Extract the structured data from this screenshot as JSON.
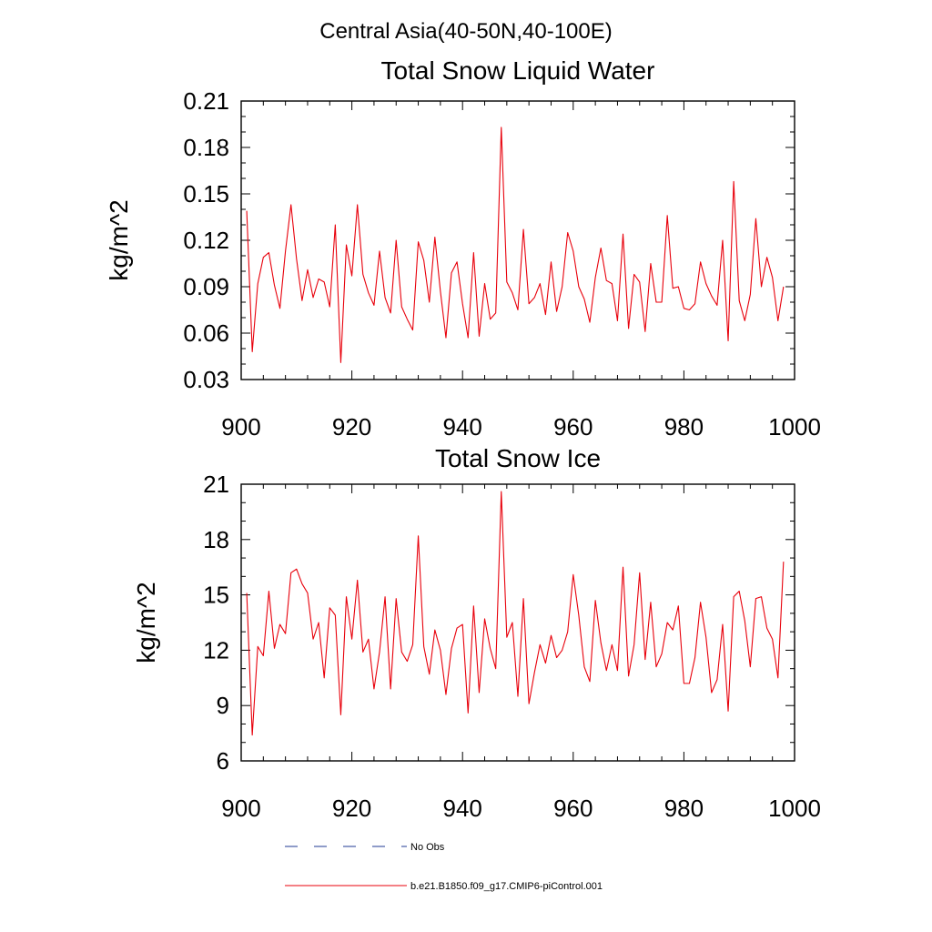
{
  "figure": {
    "main_title": "Central Asia(40-50N,40-100E)"
  },
  "chart_data": [
    {
      "type": "line",
      "title": "Total Snow Liquid Water",
      "xlabel": "",
      "ylabel": "kg/m^2",
      "xlim": [
        900,
        1000
      ],
      "ylim": [
        0.03,
        0.21
      ],
      "xticks": [
        900,
        920,
        940,
        960,
        980,
        1000
      ],
      "xtick_labels": [
        "900",
        "920",
        "940",
        "960",
        "980",
        "1000"
      ],
      "yticks": [
        0.03,
        0.06,
        0.09,
        0.12,
        0.15,
        0.18,
        0.21
      ],
      "ytick_labels": [
        "0.03",
        "0.06",
        "0.09",
        "0.12",
        "0.15",
        "0.18",
        "0.21"
      ],
      "grid": false,
      "series": [
        {
          "name": "b.e21.B1850.f09_g17.CMIP6-piControl.001",
          "color": "#e8000b",
          "x": [
            901,
            902,
            903,
            904,
            905,
            906,
            907,
            908,
            909,
            910,
            911,
            912,
            913,
            914,
            915,
            916,
            917,
            918,
            919,
            920,
            921,
            922,
            923,
            924,
            925,
            926,
            927,
            928,
            929,
            930,
            931,
            932,
            933,
            934,
            935,
            936,
            937,
            938,
            939,
            940,
            941,
            942,
            943,
            944,
            945,
            946,
            947,
            948,
            949,
            950,
            951,
            952,
            953,
            954,
            955,
            956,
            957,
            958,
            959,
            960,
            961,
            962,
            963,
            964,
            965,
            966,
            967,
            968,
            969,
            970,
            971,
            972,
            973,
            974,
            975,
            976,
            977,
            978,
            979,
            980,
            981,
            982,
            983,
            984,
            985,
            986,
            987,
            988,
            989,
            990,
            991,
            992,
            993,
            994,
            995,
            996,
            997,
            998
          ],
          "y": [
            0.139,
            0.048,
            0.092,
            0.109,
            0.112,
            0.091,
            0.076,
            0.113,
            0.143,
            0.108,
            0.081,
            0.101,
            0.083,
            0.095,
            0.093,
            0.077,
            0.13,
            0.041,
            0.117,
            0.097,
            0.143,
            0.098,
            0.086,
            0.078,
            0.113,
            0.083,
            0.073,
            0.12,
            0.077,
            0.069,
            0.062,
            0.119,
            0.107,
            0.08,
            0.122,
            0.087,
            0.057,
            0.099,
            0.106,
            0.079,
            0.057,
            0.112,
            0.058,
            0.092,
            0.069,
            0.073,
            0.193,
            0.093,
            0.086,
            0.075,
            0.127,
            0.079,
            0.083,
            0.092,
            0.072,
            0.106,
            0.074,
            0.09,
            0.125,
            0.113,
            0.09,
            0.082,
            0.067,
            0.096,
            0.115,
            0.094,
            0.092,
            0.068,
            0.124,
            0.063,
            0.098,
            0.093,
            0.061,
            0.105,
            0.08,
            0.08,
            0.136,
            0.089,
            0.09,
            0.076,
            0.075,
            0.079,
            0.106,
            0.092,
            0.084,
            0.078,
            0.12,
            0.055,
            0.158,
            0.081,
            0.068,
            0.085,
            0.134,
            0.09,
            0.109,
            0.096,
            0.068,
            0.09
          ]
        }
      ]
    },
    {
      "type": "line",
      "title": "Total Snow Ice",
      "xlabel": "",
      "ylabel": "kg/m^2",
      "xlim": [
        900,
        1000
      ],
      "ylim": [
        6,
        21
      ],
      "xticks": [
        900,
        920,
        940,
        960,
        980,
        1000
      ],
      "xtick_labels": [
        "900",
        "920",
        "940",
        "960",
        "980",
        "1000"
      ],
      "yticks": [
        6,
        9,
        12,
        15,
        18,
        21
      ],
      "ytick_labels": [
        "6",
        "9",
        "12",
        "15",
        "18",
        "21"
      ],
      "grid": false,
      "series": [
        {
          "name": "b.e21.B1850.f09_g17.CMIP6-piControl.001",
          "color": "#e8000b",
          "x": [
            901,
            902,
            903,
            904,
            905,
            906,
            907,
            908,
            909,
            910,
            911,
            912,
            913,
            914,
            915,
            916,
            917,
            918,
            919,
            920,
            921,
            922,
            923,
            924,
            925,
            926,
            927,
            928,
            929,
            930,
            931,
            932,
            933,
            934,
            935,
            936,
            937,
            938,
            939,
            940,
            941,
            942,
            943,
            944,
            945,
            946,
            947,
            948,
            949,
            950,
            951,
            952,
            953,
            954,
            955,
            956,
            957,
            958,
            959,
            960,
            961,
            962,
            963,
            964,
            965,
            966,
            967,
            968,
            969,
            970,
            971,
            972,
            973,
            974,
            975,
            976,
            977,
            978,
            979,
            980,
            981,
            982,
            983,
            984,
            985,
            986,
            987,
            988,
            989,
            990,
            991,
            992,
            993,
            994,
            995,
            996,
            997,
            998
          ],
          "y": [
            15.1,
            7.4,
            12.2,
            11.7,
            15.2,
            12.1,
            13.4,
            12.9,
            16.2,
            16.4,
            15.6,
            15.1,
            12.6,
            13.5,
            10.5,
            14.3,
            13.9,
            8.5,
            14.9,
            12.6,
            15.8,
            11.9,
            12.6,
            9.9,
            11.9,
            14.9,
            9.9,
            14.8,
            11.9,
            11.4,
            12.3,
            18.2,
            12.2,
            10.7,
            13.1,
            12.0,
            9.6,
            12.1,
            13.2,
            13.4,
            8.6,
            14.4,
            9.7,
            13.7,
            12.1,
            11.0,
            20.6,
            12.7,
            13.5,
            9.5,
            14.8,
            9.1,
            10.8,
            12.3,
            11.3,
            12.8,
            11.6,
            12.0,
            13.0,
            16.1,
            13.9,
            11.1,
            10.3,
            14.7,
            12.4,
            10.9,
            12.3,
            10.9,
            16.5,
            10.6,
            12.3,
            16.2,
            11.5,
            14.6,
            11.1,
            11.8,
            13.5,
            13.1,
            14.4,
            10.2,
            10.2,
            11.6,
            14.6,
            12.7,
            9.7,
            10.4,
            13.4,
            8.7,
            14.9,
            15.2,
            13.6,
            11.1,
            14.8,
            14.9,
            13.2,
            12.6,
            10.5,
            16.8
          ]
        }
      ]
    }
  ],
  "legend": {
    "placement": "bottom",
    "entries": [
      {
        "label": "No Obs",
        "color": "#1f3a93",
        "style": "dashed"
      },
      {
        "label": "b.e21.B1850.f09_g17.CMIP6-piControl.001",
        "color": "#e8000b",
        "style": "solid"
      }
    ]
  }
}
